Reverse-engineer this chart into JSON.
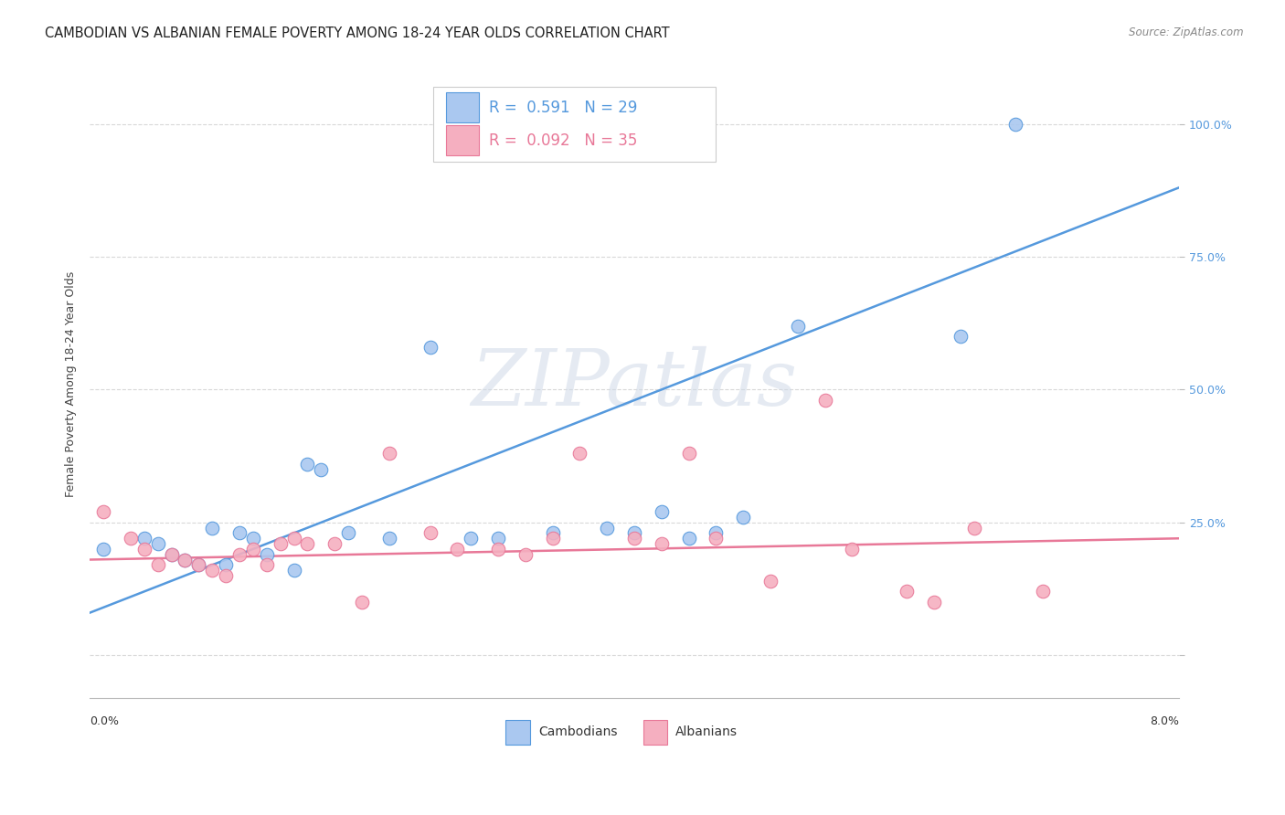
{
  "title": "CAMBODIAN VS ALBANIAN FEMALE POVERTY AMONG 18-24 YEAR OLDS CORRELATION CHART",
  "source": "Source: ZipAtlas.com",
  "ylabel": "Female Poverty Among 18-24 Year Olds",
  "ytick_values": [
    0.0,
    0.25,
    0.5,
    0.75,
    1.0
  ],
  "ytick_labels_right": [
    "",
    "25.0%",
    "50.0%",
    "75.0%",
    "100.0%"
  ],
  "xlim": [
    0.0,
    0.08
  ],
  "ylim": [
    -0.08,
    1.1
  ],
  "R_cambodian": "0.591",
  "N_cambodian": "29",
  "R_albanian": "0.092",
  "N_albanian": "35",
  "watermark": "ZIPatlas",
  "cambodian_color": "#aac8f0",
  "albanian_color": "#f5afc0",
  "blue_line_color": "#5599dd",
  "pink_line_color": "#e87898",
  "cambodian_x": [
    0.001,
    0.004,
    0.005,
    0.006,
    0.007,
    0.008,
    0.009,
    0.01,
    0.011,
    0.012,
    0.013,
    0.015,
    0.016,
    0.017,
    0.019,
    0.022,
    0.025,
    0.028,
    0.03,
    0.034,
    0.038,
    0.04,
    0.042,
    0.044,
    0.046,
    0.048,
    0.052,
    0.064,
    0.068
  ],
  "cambodian_y": [
    0.2,
    0.22,
    0.21,
    0.19,
    0.18,
    0.17,
    0.24,
    0.17,
    0.23,
    0.22,
    0.19,
    0.16,
    0.36,
    0.35,
    0.23,
    0.22,
    0.58,
    0.22,
    0.22,
    0.23,
    0.24,
    0.23,
    0.27,
    0.22,
    0.23,
    0.26,
    0.62,
    0.6,
    1.0
  ],
  "albanian_x": [
    0.001,
    0.003,
    0.004,
    0.005,
    0.006,
    0.007,
    0.008,
    0.009,
    0.01,
    0.011,
    0.012,
    0.013,
    0.014,
    0.015,
    0.016,
    0.018,
    0.02,
    0.022,
    0.025,
    0.027,
    0.03,
    0.032,
    0.034,
    0.036,
    0.04,
    0.042,
    0.044,
    0.046,
    0.05,
    0.054,
    0.056,
    0.06,
    0.062,
    0.065,
    0.07
  ],
  "albanian_y": [
    0.27,
    0.22,
    0.2,
    0.17,
    0.19,
    0.18,
    0.17,
    0.16,
    0.15,
    0.19,
    0.2,
    0.17,
    0.21,
    0.22,
    0.21,
    0.21,
    0.1,
    0.38,
    0.23,
    0.2,
    0.2,
    0.19,
    0.22,
    0.38,
    0.22,
    0.21,
    0.38,
    0.22,
    0.14,
    0.48,
    0.2,
    0.12,
    0.1,
    0.24,
    0.12
  ],
  "blue_line_x0": 0.0,
  "blue_line_x1": 0.08,
  "blue_line_y0": 0.08,
  "blue_line_y1": 0.88,
  "pink_line_x0": 0.0,
  "pink_line_x1": 0.08,
  "pink_line_y0": 0.18,
  "pink_line_y1": 0.22,
  "marker_size": 110,
  "grid_color": "#d8d8d8",
  "background_color": "#ffffff",
  "title_fontsize": 10.5,
  "axis_label_fontsize": 9,
  "tick_fontsize": 9,
  "legend_fontsize": 12
}
